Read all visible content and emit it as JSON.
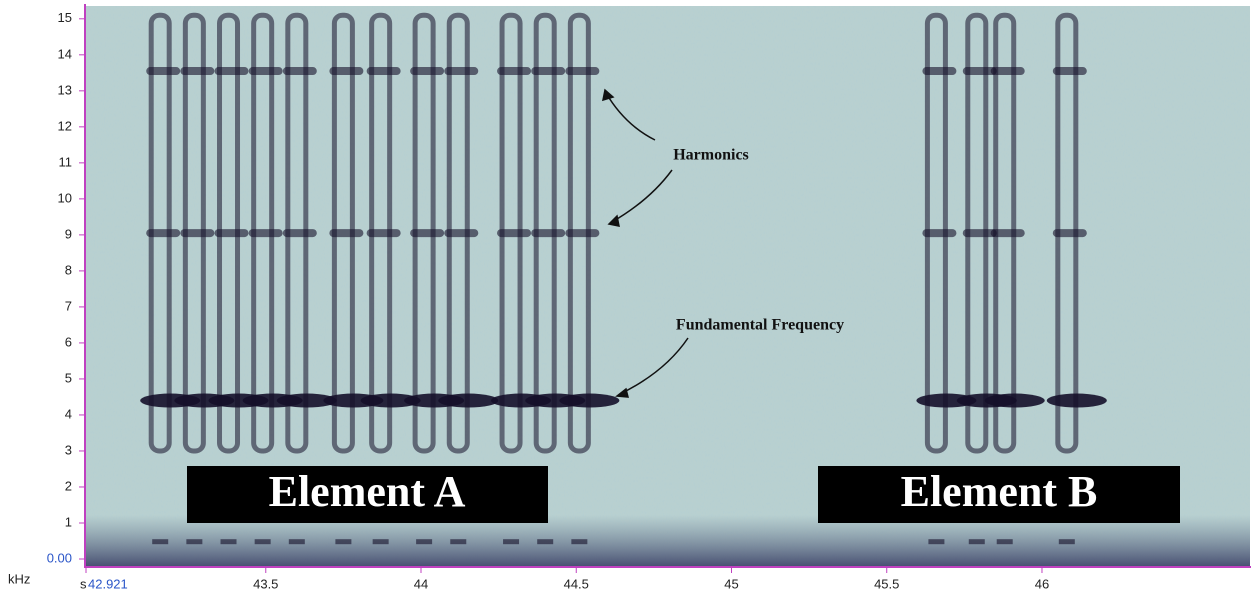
{
  "chart_data": {
    "type": "spectrogram",
    "xlabel": "s",
    "ylabel": "kHz",
    "x": [
      43.16,
      43.27,
      43.38,
      43.49,
      43.6,
      43.75,
      43.87,
      44.01,
      44.12,
      44.29,
      44.4,
      44.51,
      45.66,
      45.79,
      45.88,
      46.08
    ],
    "values": [
      4.4,
      4.4,
      4.4,
      4.4,
      4.4,
      4.4,
      4.4,
      4.4,
      4.4,
      4.4,
      4.4,
      4.4,
      4.4,
      4.4,
      4.4,
      4.4
    ],
    "color": "#15102a",
    "xlim": [
      42.921,
      46.67
    ],
    "ylim": [
      0,
      15.3
    ],
    "xticks": [
      42.921,
      43.5,
      44,
      44.5,
      45,
      45.5,
      46
    ],
    "yticks": [
      {
        "value": 0,
        "label": "0.00"
      },
      1,
      2,
      3,
      4,
      5,
      6,
      7,
      8,
      9,
      10,
      11,
      12,
      13,
      14,
      15
    ],
    "annotations": [
      "Harmonics",
      "Fundamental Frequency"
    ],
    "elements": [
      "Element A",
      "Element B"
    ]
  }
}
